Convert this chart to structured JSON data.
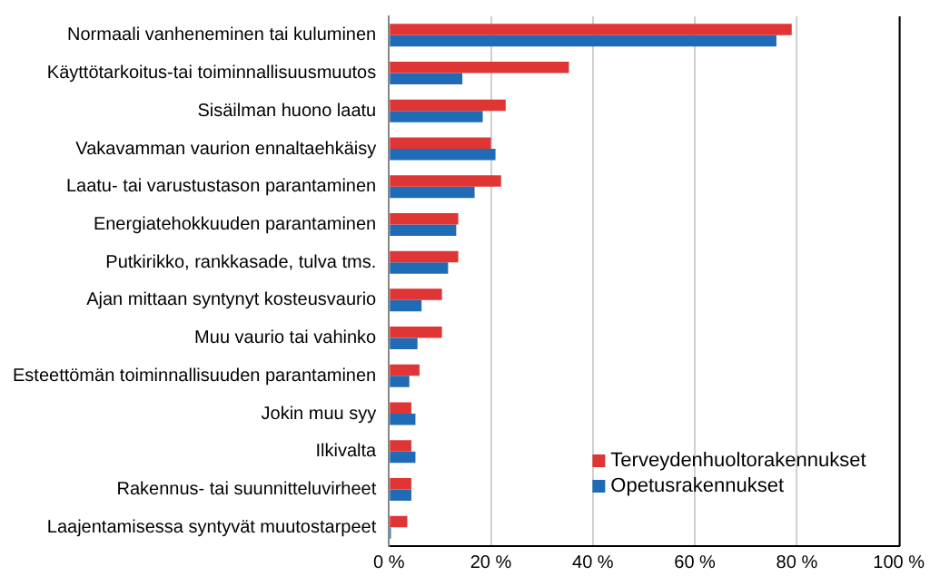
{
  "chart_data": {
    "type": "bar",
    "orientation": "horizontal",
    "categories": [
      "Normaali vanheneminen tai kuluminen",
      "Käyttötarkoitus-tai toiminnallisuusmuutos",
      "Sisäilman huono laatu",
      "Vakavamman vaurion ennaltaehkäisy",
      "Laatu- tai varustustason parantaminen",
      "Energiatehokkuuden parantaminen",
      "Putkirikko, rankkasade, tulva tms.",
      "Ajan mittaan syntynyt kosteusvaurio",
      "Muu vaurio tai vahinko",
      "Esteettömän toiminnallisuuden parantaminen",
      "Jokin muu syy",
      "Ilkivalta",
      "Rakennus- tai suunnitteluvirheet",
      "Laajentamisessa syntyvät muutostarpeet"
    ],
    "series": [
      {
        "name": "Terveydenhuoltorakennukset",
        "color": "#e03535",
        "values": [
          79,
          35.3,
          22.9,
          20,
          22,
          13.6,
          13.6,
          10.4,
          10.4,
          6,
          4.4,
          4.4,
          4.4,
          3.6
        ]
      },
      {
        "name": "Opetusrakennukset",
        "color": "#1f6bb5",
        "values": [
          76,
          14.4,
          18.4,
          20.9,
          16.8,
          13.2,
          11.6,
          6.4,
          5.6,
          4,
          5.2,
          5.2,
          4.4,
          0.4
        ]
      }
    ],
    "xlim": [
      0,
      100
    ],
    "xticks": [
      {
        "value": 0,
        "label": "0 %"
      },
      {
        "value": 20,
        "label": "20 %"
      },
      {
        "value": 40,
        "label": "40 %"
      },
      {
        "value": 60,
        "label": "60 %"
      },
      {
        "value": 80,
        "label": "80 %"
      },
      {
        "value": 100,
        "label": "100 %"
      }
    ],
    "grid": "x",
    "legend": "bottom right"
  }
}
